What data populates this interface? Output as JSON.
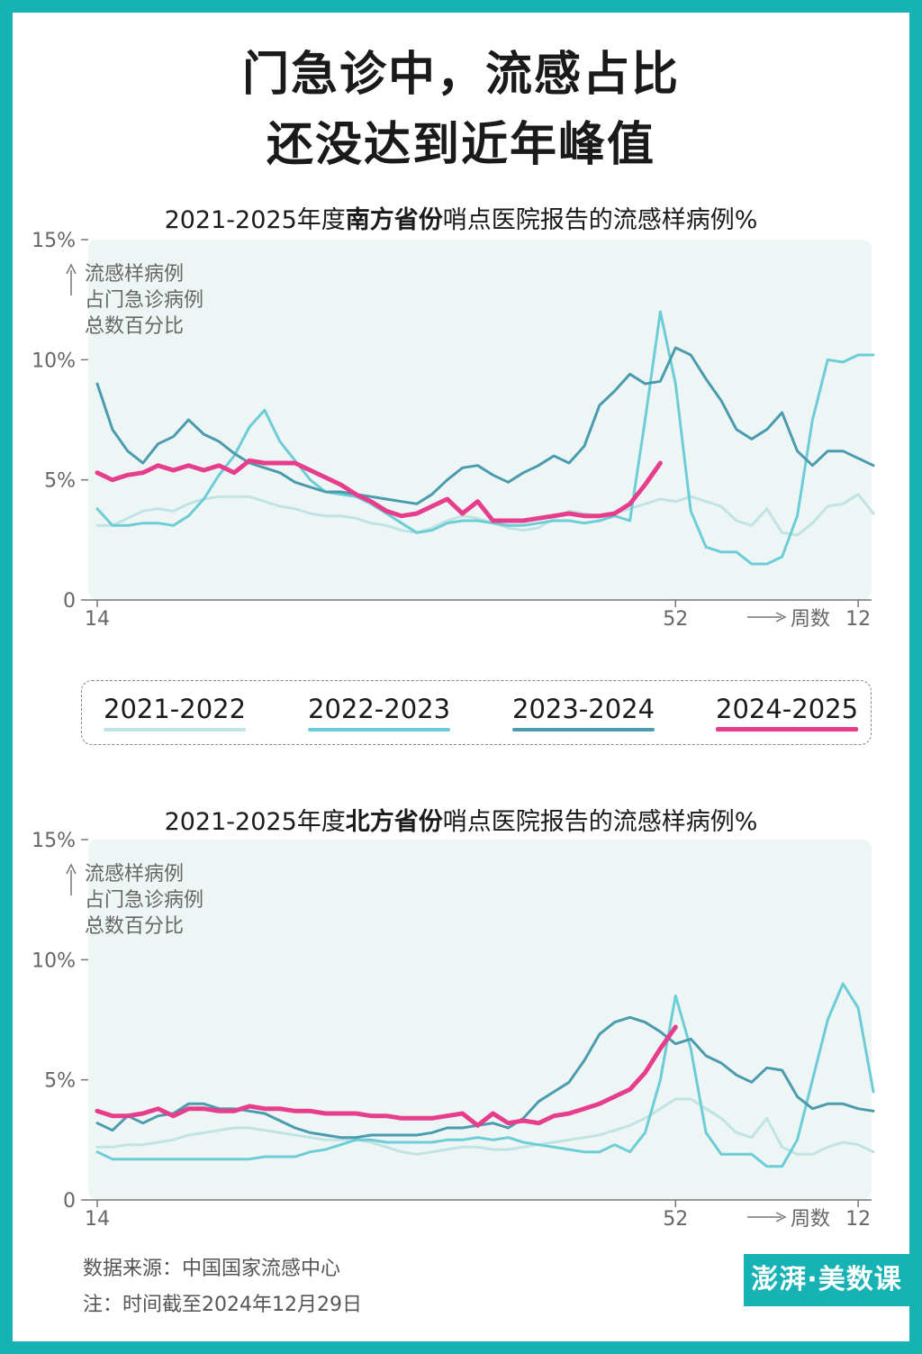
{
  "title_line1": "门急诊中，流感占比",
  "title_line2": "还没达到近年峰值",
  "legend": [
    {
      "label": "2021-2022",
      "color": "#bfe4e3"
    },
    {
      "label": "2022-2023",
      "color": "#6ccdd6"
    },
    {
      "label": "2023-2024",
      "color": "#4b9bae"
    },
    {
      "label": "2024-2025",
      "color": "#e63d8c"
    }
  ],
  "footer": {
    "source": "数据来源：中国国家流感中心",
    "note": "注：时间截至2024年12月29日"
  },
  "chart_data": [
    {
      "type": "line",
      "title_prefix": "2021-2025年度",
      "title_bold": "南方省份",
      "title_suffix": "哨点医院报告的流感样病例%",
      "ylabel_lines": [
        "流感样病例",
        "占门急诊病例",
        "总数百分比"
      ],
      "y_ticks": [
        "15%",
        "10%",
        "5%",
        "0"
      ],
      "y_tick_values": [
        15,
        10,
        5,
        0
      ],
      "ylim": [
        0,
        15
      ],
      "x_index_range": [
        0,
        51
      ],
      "x_ticks": [
        {
          "index": 0,
          "label": "14"
        },
        {
          "index": 38,
          "label": "52"
        },
        {
          "index": 50,
          "label": "12"
        }
      ],
      "x_axis_label": "周数",
      "series": [
        {
          "name": "2021-2022",
          "color": "#bfe4e3",
          "values": [
            3.1,
            3.1,
            3.4,
            3.7,
            3.8,
            3.7,
            4.0,
            4.2,
            4.3,
            4.3,
            4.3,
            4.1,
            3.9,
            3.8,
            3.6,
            3.5,
            3.5,
            3.4,
            3.2,
            3.1,
            2.9,
            2.8,
            3.0,
            3.3,
            3.5,
            3.4,
            3.2,
            3.0,
            2.9,
            3.0,
            3.4,
            3.7,
            3.6,
            3.5,
            3.6,
            3.8,
            4.0,
            4.2,
            4.1,
            4.3,
            4.1,
            3.9,
            3.3,
            3.1,
            3.8,
            2.8,
            2.7,
            3.2,
            3.9,
            4.0,
            4.4,
            3.6
          ]
        },
        {
          "name": "2022-2023",
          "color": "#6ccdd6",
          "values": [
            3.8,
            3.1,
            3.1,
            3.2,
            3.2,
            3.1,
            3.5,
            4.2,
            5.2,
            6.0,
            7.2,
            7.9,
            6.6,
            5.8,
            5.0,
            4.5,
            4.4,
            4.3,
            4.0,
            3.6,
            3.2,
            2.8,
            2.9,
            3.2,
            3.3,
            3.3,
            3.2,
            3.1,
            3.1,
            3.2,
            3.3,
            3.3,
            3.2,
            3.3,
            3.5,
            3.3,
            7.5,
            12.0,
            9.0,
            3.7,
            2.2,
            2.0,
            2.0,
            1.5,
            1.5,
            1.8,
            3.5,
            7.5,
            10.0,
            9.9,
            10.2,
            10.2
          ]
        },
        {
          "name": "2023-2024",
          "color": "#4b9bae",
          "values": [
            9.0,
            7.1,
            6.2,
            5.7,
            6.5,
            6.8,
            7.5,
            6.9,
            6.6,
            6.1,
            5.7,
            5.5,
            5.3,
            4.9,
            4.7,
            4.5,
            4.5,
            4.4,
            4.3,
            4.2,
            4.1,
            4.0,
            4.4,
            5.0,
            5.5,
            5.6,
            5.2,
            4.9,
            5.3,
            5.6,
            6.0,
            5.7,
            6.4,
            8.1,
            8.7,
            9.4,
            9.0,
            9.1,
            10.5,
            10.2,
            9.2,
            8.3,
            7.1,
            6.7,
            7.1,
            7.8,
            6.2,
            5.6,
            6.2,
            6.2,
            5.9,
            5.6
          ]
        },
        {
          "name": "2024-2025",
          "color": "#e63d8c",
          "values": [
            5.3,
            5.0,
            5.2,
            5.3,
            5.6,
            5.4,
            5.6,
            5.4,
            5.6,
            5.3,
            5.8,
            5.7,
            5.7,
            5.7,
            5.4,
            5.1,
            4.8,
            4.4,
            4.1,
            3.7,
            3.5,
            3.6,
            3.9,
            4.2,
            3.6,
            4.1,
            3.3,
            3.3,
            3.3,
            3.4,
            3.5,
            3.6,
            3.5,
            3.5,
            3.6,
            4.0,
            4.8,
            5.7
          ]
        }
      ]
    },
    {
      "type": "line",
      "title_prefix": "2021-2025年度",
      "title_bold": "北方省份",
      "title_suffix": "哨点医院报告的流感样病例%",
      "ylabel_lines": [
        "流感样病例",
        "占门急诊病例",
        "总数百分比"
      ],
      "y_ticks": [
        "15%",
        "10%",
        "5%",
        "0"
      ],
      "y_tick_values": [
        15,
        10,
        5,
        0
      ],
      "ylim": [
        0,
        15
      ],
      "x_index_range": [
        0,
        51
      ],
      "x_ticks": [
        {
          "index": 0,
          "label": "14"
        },
        {
          "index": 38,
          "label": "52"
        },
        {
          "index": 50,
          "label": "12"
        }
      ],
      "x_axis_label": "周数",
      "series": [
        {
          "name": "2021-2022",
          "color": "#bfe4e3",
          "values": [
            2.2,
            2.2,
            2.3,
            2.3,
            2.4,
            2.5,
            2.7,
            2.8,
            2.9,
            3.0,
            3.0,
            2.9,
            2.8,
            2.7,
            2.6,
            2.5,
            2.5,
            2.5,
            2.4,
            2.2,
            2.0,
            1.9,
            2.0,
            2.1,
            2.2,
            2.2,
            2.1,
            2.1,
            2.2,
            2.3,
            2.4,
            2.5,
            2.6,
            2.7,
            2.9,
            3.1,
            3.4,
            3.8,
            4.2,
            4.2,
            3.8,
            3.4,
            2.8,
            2.6,
            3.4,
            2.2,
            1.9,
            1.9,
            2.2,
            2.4,
            2.3,
            2.0
          ]
        },
        {
          "name": "2022-2023",
          "color": "#6ccdd6",
          "values": [
            2.0,
            1.7,
            1.7,
            1.7,
            1.7,
            1.7,
            1.7,
            1.7,
            1.7,
            1.7,
            1.7,
            1.8,
            1.8,
            1.8,
            2.0,
            2.1,
            2.3,
            2.5,
            2.5,
            2.4,
            2.4,
            2.4,
            2.4,
            2.5,
            2.5,
            2.6,
            2.5,
            2.6,
            2.4,
            2.3,
            2.2,
            2.1,
            2.0,
            2.0,
            2.3,
            2.0,
            2.8,
            5.0,
            8.5,
            6.3,
            2.8,
            1.9,
            1.9,
            1.9,
            1.4,
            1.4,
            2.5,
            5.0,
            7.5,
            9.0,
            8.0,
            4.5
          ]
        },
        {
          "name": "2023-2024",
          "color": "#4b9bae",
          "values": [
            3.2,
            2.9,
            3.5,
            3.2,
            3.5,
            3.6,
            4.0,
            4.0,
            3.8,
            3.8,
            3.7,
            3.6,
            3.3,
            3.0,
            2.8,
            2.7,
            2.6,
            2.6,
            2.7,
            2.7,
            2.7,
            2.7,
            2.8,
            3.0,
            3.0,
            3.1,
            3.2,
            3.0,
            3.4,
            4.1,
            4.5,
            4.9,
            5.8,
            6.9,
            7.4,
            7.6,
            7.4,
            7.0,
            6.5,
            6.7,
            6.0,
            5.7,
            5.2,
            4.9,
            5.5,
            5.4,
            4.3,
            3.8,
            4.0,
            4.0,
            3.8,
            3.7
          ]
        },
        {
          "name": "2024-2025",
          "color": "#e63d8c",
          "values": [
            3.7,
            3.5,
            3.5,
            3.6,
            3.8,
            3.5,
            3.8,
            3.8,
            3.7,
            3.7,
            3.9,
            3.8,
            3.8,
            3.7,
            3.7,
            3.6,
            3.6,
            3.6,
            3.5,
            3.5,
            3.4,
            3.4,
            3.4,
            3.5,
            3.6,
            3.1,
            3.6,
            3.2,
            3.3,
            3.2,
            3.5,
            3.6,
            3.8,
            4.0,
            4.3,
            4.6,
            5.3,
            6.3,
            7.2
          ]
        }
      ]
    }
  ]
}
